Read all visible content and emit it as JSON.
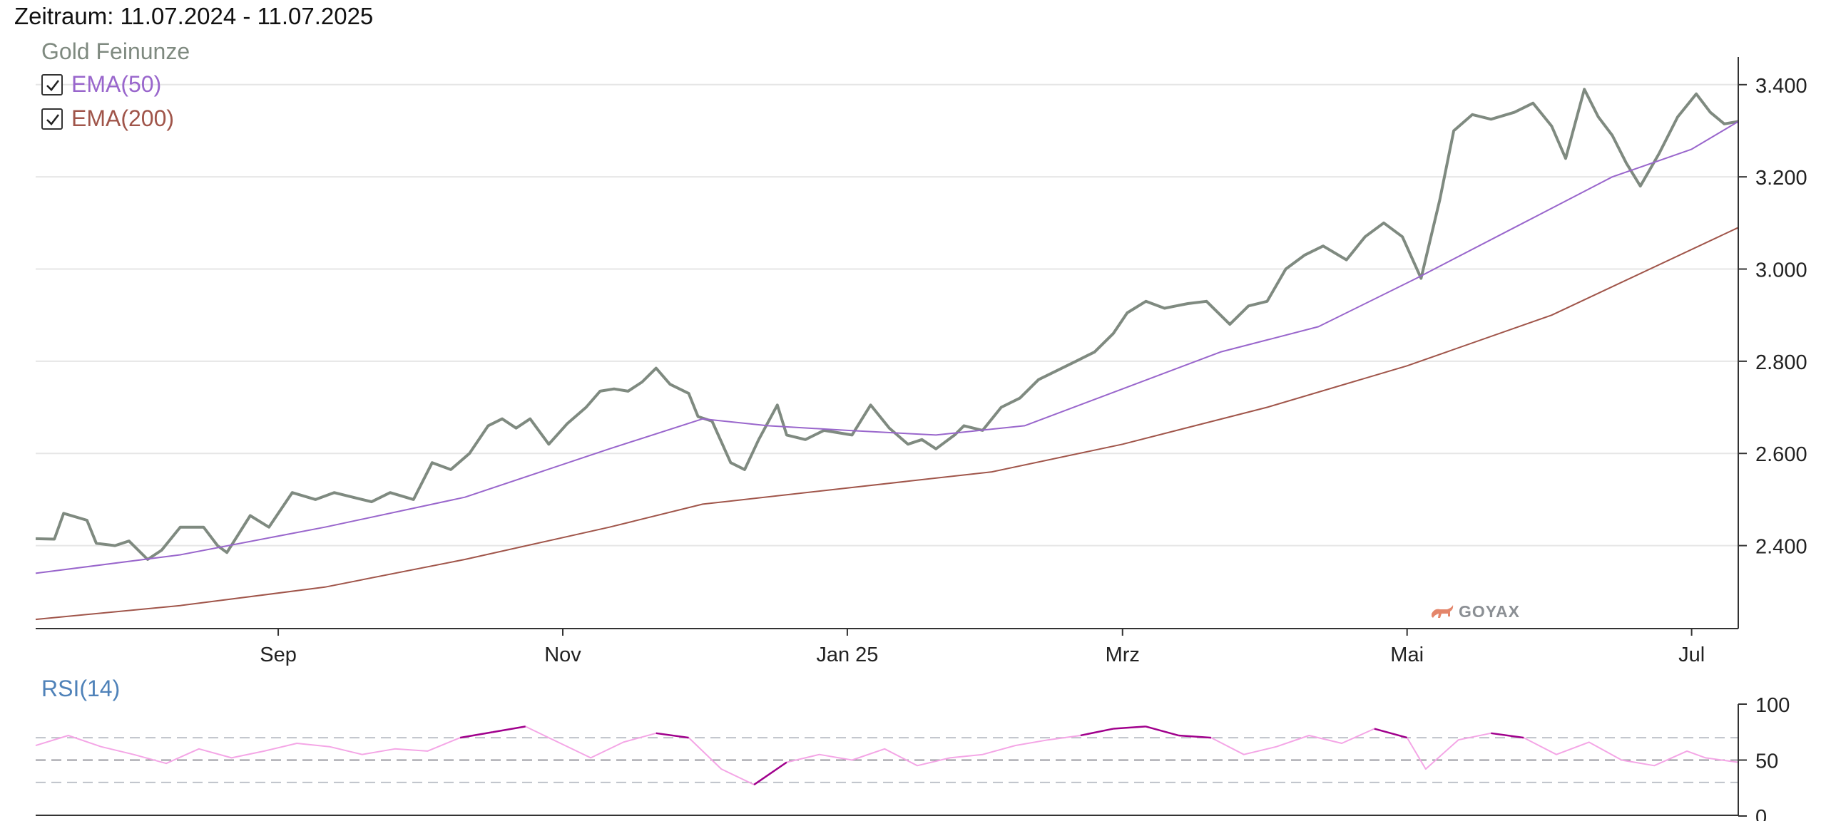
{
  "header": {
    "timerange": "Zeitraum: 11.07.2024 - 11.07.2025"
  },
  "legend": {
    "series_name": "Gold Feinunze",
    "items": [
      {
        "label": "EMA(50)",
        "checked": true,
        "color": "#9966cc"
      },
      {
        "label": "EMA(200)",
        "checked": true,
        "color": "#a0554a"
      }
    ]
  },
  "rsi_panel": {
    "title": "RSI(14)"
  },
  "brand": {
    "text": "GOYAX",
    "icon": "bull-icon"
  },
  "colors": {
    "price": "#7f8a80",
    "ema50": "#9966cc",
    "ema200": "#a0554a",
    "rsi": "#f4a6e6",
    "rsi_extreme": "#a0008c",
    "rsi_title": "#4f82b9"
  },
  "chart_data": [
    {
      "type": "line",
      "title": "",
      "x_range": [
        "2024-07-11",
        "2025-07-11"
      ],
      "x_ticks": [
        {
          "date": "2024-09-01",
          "label": "Sep"
        },
        {
          "date": "2024-11-01",
          "label": "Nov"
        },
        {
          "date": "2025-01-01",
          "label": "Jan 25"
        },
        {
          "date": "2025-03-01",
          "label": "Mrz"
        },
        {
          "date": "2025-05-01",
          "label": "Mai"
        },
        {
          "date": "2025-07-01",
          "label": "Jul"
        }
      ],
      "ylim": [
        2220,
        3460
      ],
      "y_ticks": [
        {
          "value": 2400,
          "label": "2.400"
        },
        {
          "value": 2600,
          "label": "2.600"
        },
        {
          "value": 2800,
          "label": "2.800"
        },
        {
          "value": 3000,
          "label": "3.000"
        },
        {
          "value": 3200,
          "label": "3.200"
        },
        {
          "value": 3400,
          "label": "3.400"
        }
      ],
      "grid": true,
      "legend_position": "top-left",
      "series": [
        {
          "name": "Gold Feinunze",
          "color": "#7f8a80",
          "points": [
            [
              "2024-07-11",
              2415
            ],
            [
              "2024-07-15",
              2414
            ],
            [
              "2024-07-17",
              2470
            ],
            [
              "2024-07-22",
              2455
            ],
            [
              "2024-07-24",
              2405
            ],
            [
              "2024-07-28",
              2400
            ],
            [
              "2024-07-31",
              2410
            ],
            [
              "2024-08-04",
              2370
            ],
            [
              "2024-08-07",
              2390
            ],
            [
              "2024-08-11",
              2440
            ],
            [
              "2024-08-16",
              2440
            ],
            [
              "2024-08-19",
              2400
            ],
            [
              "2024-08-21",
              2385
            ],
            [
              "2024-08-26",
              2465
            ],
            [
              "2024-08-30",
              2440
            ],
            [
              "2024-09-04",
              2515
            ],
            [
              "2024-09-09",
              2500
            ],
            [
              "2024-09-13",
              2515
            ],
            [
              "2024-09-17",
              2505
            ],
            [
              "2024-09-21",
              2495
            ],
            [
              "2024-09-25",
              2515
            ],
            [
              "2024-09-30",
              2500
            ],
            [
              "2024-10-04",
              2580
            ],
            [
              "2024-10-08",
              2565
            ],
            [
              "2024-10-12",
              2600
            ],
            [
              "2024-10-16",
              2660
            ],
            [
              "2024-10-19",
              2675
            ],
            [
              "2024-10-22",
              2655
            ],
            [
              "2024-10-25",
              2675
            ],
            [
              "2024-10-29",
              2620
            ],
            [
              "2024-11-02",
              2665
            ],
            [
              "2024-11-06",
              2700
            ],
            [
              "2024-11-09",
              2735
            ],
            [
              "2024-11-12",
              2740
            ],
            [
              "2024-11-15",
              2735
            ],
            [
              "2024-11-18",
              2755
            ],
            [
              "2024-11-21",
              2785
            ],
            [
              "2024-11-24",
              2750
            ],
            [
              "2024-11-28",
              2730
            ],
            [
              "2024-11-30",
              2680
            ],
            [
              "2024-12-03",
              2670
            ],
            [
              "2024-12-07",
              2580
            ],
            [
              "2024-12-10",
              2565
            ],
            [
              "2024-12-13",
              2630
            ],
            [
              "2024-12-17",
              2705
            ],
            [
              "2024-12-19",
              2640
            ],
            [
              "2024-12-23",
              2630
            ],
            [
              "2024-12-27",
              2650
            ],
            [
              "2025-01-02",
              2640
            ],
            [
              "2025-01-06",
              2705
            ],
            [
              "2025-01-10",
              2655
            ],
            [
              "2025-01-14",
              2620
            ],
            [
              "2025-01-17",
              2630
            ],
            [
              "2025-01-20",
              2610
            ],
            [
              "2025-01-24",
              2640
            ],
            [
              "2025-01-26",
              2660
            ],
            [
              "2025-01-30",
              2650
            ],
            [
              "2025-02-03",
              2700
            ],
            [
              "2025-02-07",
              2720
            ],
            [
              "2025-02-11",
              2760
            ],
            [
              "2025-02-15",
              2780
            ],
            [
              "2025-02-19",
              2800
            ],
            [
              "2025-02-23",
              2820
            ],
            [
              "2025-02-27",
              2860
            ],
            [
              "2025-03-02",
              2905
            ],
            [
              "2025-03-06",
              2930
            ],
            [
              "2025-03-10",
              2915
            ],
            [
              "2025-03-15",
              2925
            ],
            [
              "2025-03-19",
              2930
            ],
            [
              "2025-03-24",
              2880
            ],
            [
              "2025-03-28",
              2920
            ],
            [
              "2025-04-01",
              2930
            ],
            [
              "2025-04-05",
              3000
            ],
            [
              "2025-04-09",
              3030
            ],
            [
              "2025-04-13",
              3050
            ],
            [
              "2025-04-18",
              3020
            ],
            [
              "2025-04-22",
              3070
            ],
            [
              "2025-04-26",
              3100
            ],
            [
              "2025-04-30",
              3070
            ],
            [
              "2025-05-04",
              2980
            ],
            [
              "2025-05-08",
              3150
            ],
            [
              "2025-05-11",
              3300
            ],
            [
              "2025-05-15",
              3335
            ],
            [
              "2025-05-19",
              3325
            ],
            [
              "2025-05-24",
              3340
            ],
            [
              "2025-05-28",
              3360
            ],
            [
              "2025-06-01",
              3310
            ],
            [
              "2025-06-04",
              3240
            ],
            [
              "2025-06-08",
              3390
            ],
            [
              "2025-06-11",
              3330
            ],
            [
              "2025-06-14",
              3290
            ],
            [
              "2025-06-17",
              3230
            ],
            [
              "2025-06-20",
              3180
            ],
            [
              "2025-06-24",
              3250
            ],
            [
              "2025-06-28",
              3330
            ],
            [
              "2025-07-02",
              3380
            ],
            [
              "2025-07-05",
              3340
            ],
            [
              "2025-07-08",
              3315
            ],
            [
              "2025-07-11",
              3320
            ]
          ]
        },
        {
          "name": "EMA(50)",
          "color": "#9966cc",
          "points": [
            [
              "2024-07-11",
              2340
            ],
            [
              "2024-08-11",
              2380
            ],
            [
              "2024-09-11",
              2440
            ],
            [
              "2024-10-11",
              2505
            ],
            [
              "2024-11-11",
              2610
            ],
            [
              "2024-12-01",
              2675
            ],
            [
              "2024-12-15",
              2660
            ],
            [
              "2025-01-01",
              2650
            ],
            [
              "2025-01-20",
              2640
            ],
            [
              "2025-02-08",
              2660
            ],
            [
              "2025-03-01",
              2740
            ],
            [
              "2025-03-22",
              2820
            ],
            [
              "2025-04-12",
              2875
            ],
            [
              "2025-05-03",
              2980
            ],
            [
              "2025-05-24",
              3090
            ],
            [
              "2025-06-14",
              3200
            ],
            [
              "2025-07-01",
              3260
            ],
            [
              "2025-07-11",
              3320
            ]
          ]
        },
        {
          "name": "EMA(200)",
          "color": "#a0554a",
          "points": [
            [
              "2024-07-11",
              2240
            ],
            [
              "2024-08-11",
              2270
            ],
            [
              "2024-09-11",
              2310
            ],
            [
              "2024-10-11",
              2370
            ],
            [
              "2024-11-11",
              2440
            ],
            [
              "2024-12-01",
              2490
            ],
            [
              "2025-01-01",
              2525
            ],
            [
              "2025-02-01",
              2560
            ],
            [
              "2025-03-01",
              2620
            ],
            [
              "2025-04-01",
              2700
            ],
            [
              "2025-05-01",
              2790
            ],
            [
              "2025-06-01",
              2900
            ],
            [
              "2025-07-11",
              3090
            ]
          ]
        }
      ]
    },
    {
      "type": "line",
      "title": "RSI(14)",
      "x_range": [
        "2024-07-11",
        "2025-07-11"
      ],
      "ylim": [
        0,
        100
      ],
      "y_ticks": [
        {
          "value": 0,
          "label": "0"
        },
        {
          "value": 50,
          "label": "50"
        },
        {
          "value": 100,
          "label": "100"
        }
      ],
      "reference_lines": [
        30,
        50,
        70
      ],
      "series": [
        {
          "name": "RSI(14)",
          "color": "#f4a6e6",
          "points": [
            [
              "2024-07-11",
              63
            ],
            [
              "2024-07-18",
              72
            ],
            [
              "2024-07-25",
              62
            ],
            [
              "2024-08-01",
              55
            ],
            [
              "2024-08-08",
              47
            ],
            [
              "2024-08-15",
              60
            ],
            [
              "2024-08-22",
              52
            ],
            [
              "2024-08-29",
              58
            ],
            [
              "2024-09-05",
              65
            ],
            [
              "2024-09-12",
              62
            ],
            [
              "2024-09-19",
              55
            ],
            [
              "2024-09-26",
              60
            ],
            [
              "2024-10-03",
              58
            ],
            [
              "2024-10-10",
              70
            ],
            [
              "2024-10-17",
              75
            ],
            [
              "2024-10-24",
              80
            ],
            [
              "2024-10-31",
              66
            ],
            [
              "2024-11-07",
              52
            ],
            [
              "2024-11-14",
              66
            ],
            [
              "2024-11-21",
              74
            ],
            [
              "2024-11-28",
              70
            ],
            [
              "2024-12-05",
              42
            ],
            [
              "2024-12-12",
              28
            ],
            [
              "2024-12-19",
              48
            ],
            [
              "2024-12-26",
              55
            ],
            [
              "2025-01-02",
              50
            ],
            [
              "2025-01-09",
              60
            ],
            [
              "2025-01-16",
              45
            ],
            [
              "2025-01-23",
              52
            ],
            [
              "2025-01-30",
              55
            ],
            [
              "2025-02-06",
              63
            ],
            [
              "2025-02-13",
              68
            ],
            [
              "2025-02-20",
              72
            ],
            [
              "2025-02-27",
              78
            ],
            [
              "2025-03-06",
              80
            ],
            [
              "2025-03-13",
              72
            ],
            [
              "2025-03-20",
              70
            ],
            [
              "2025-03-27",
              55
            ],
            [
              "2025-04-03",
              62
            ],
            [
              "2025-04-10",
              72
            ],
            [
              "2025-04-17",
              65
            ],
            [
              "2025-04-24",
              78
            ],
            [
              "2025-05-01",
              70
            ],
            [
              "2025-05-05",
              42
            ],
            [
              "2025-05-12",
              68
            ],
            [
              "2025-05-19",
              74
            ],
            [
              "2025-05-26",
              70
            ],
            [
              "2025-06-02",
              55
            ],
            [
              "2025-06-09",
              66
            ],
            [
              "2025-06-16",
              50
            ],
            [
              "2025-06-23",
              45
            ],
            [
              "2025-06-30",
              58
            ],
            [
              "2025-07-04",
              52
            ],
            [
              "2025-07-11",
              48
            ]
          ]
        }
      ]
    }
  ]
}
